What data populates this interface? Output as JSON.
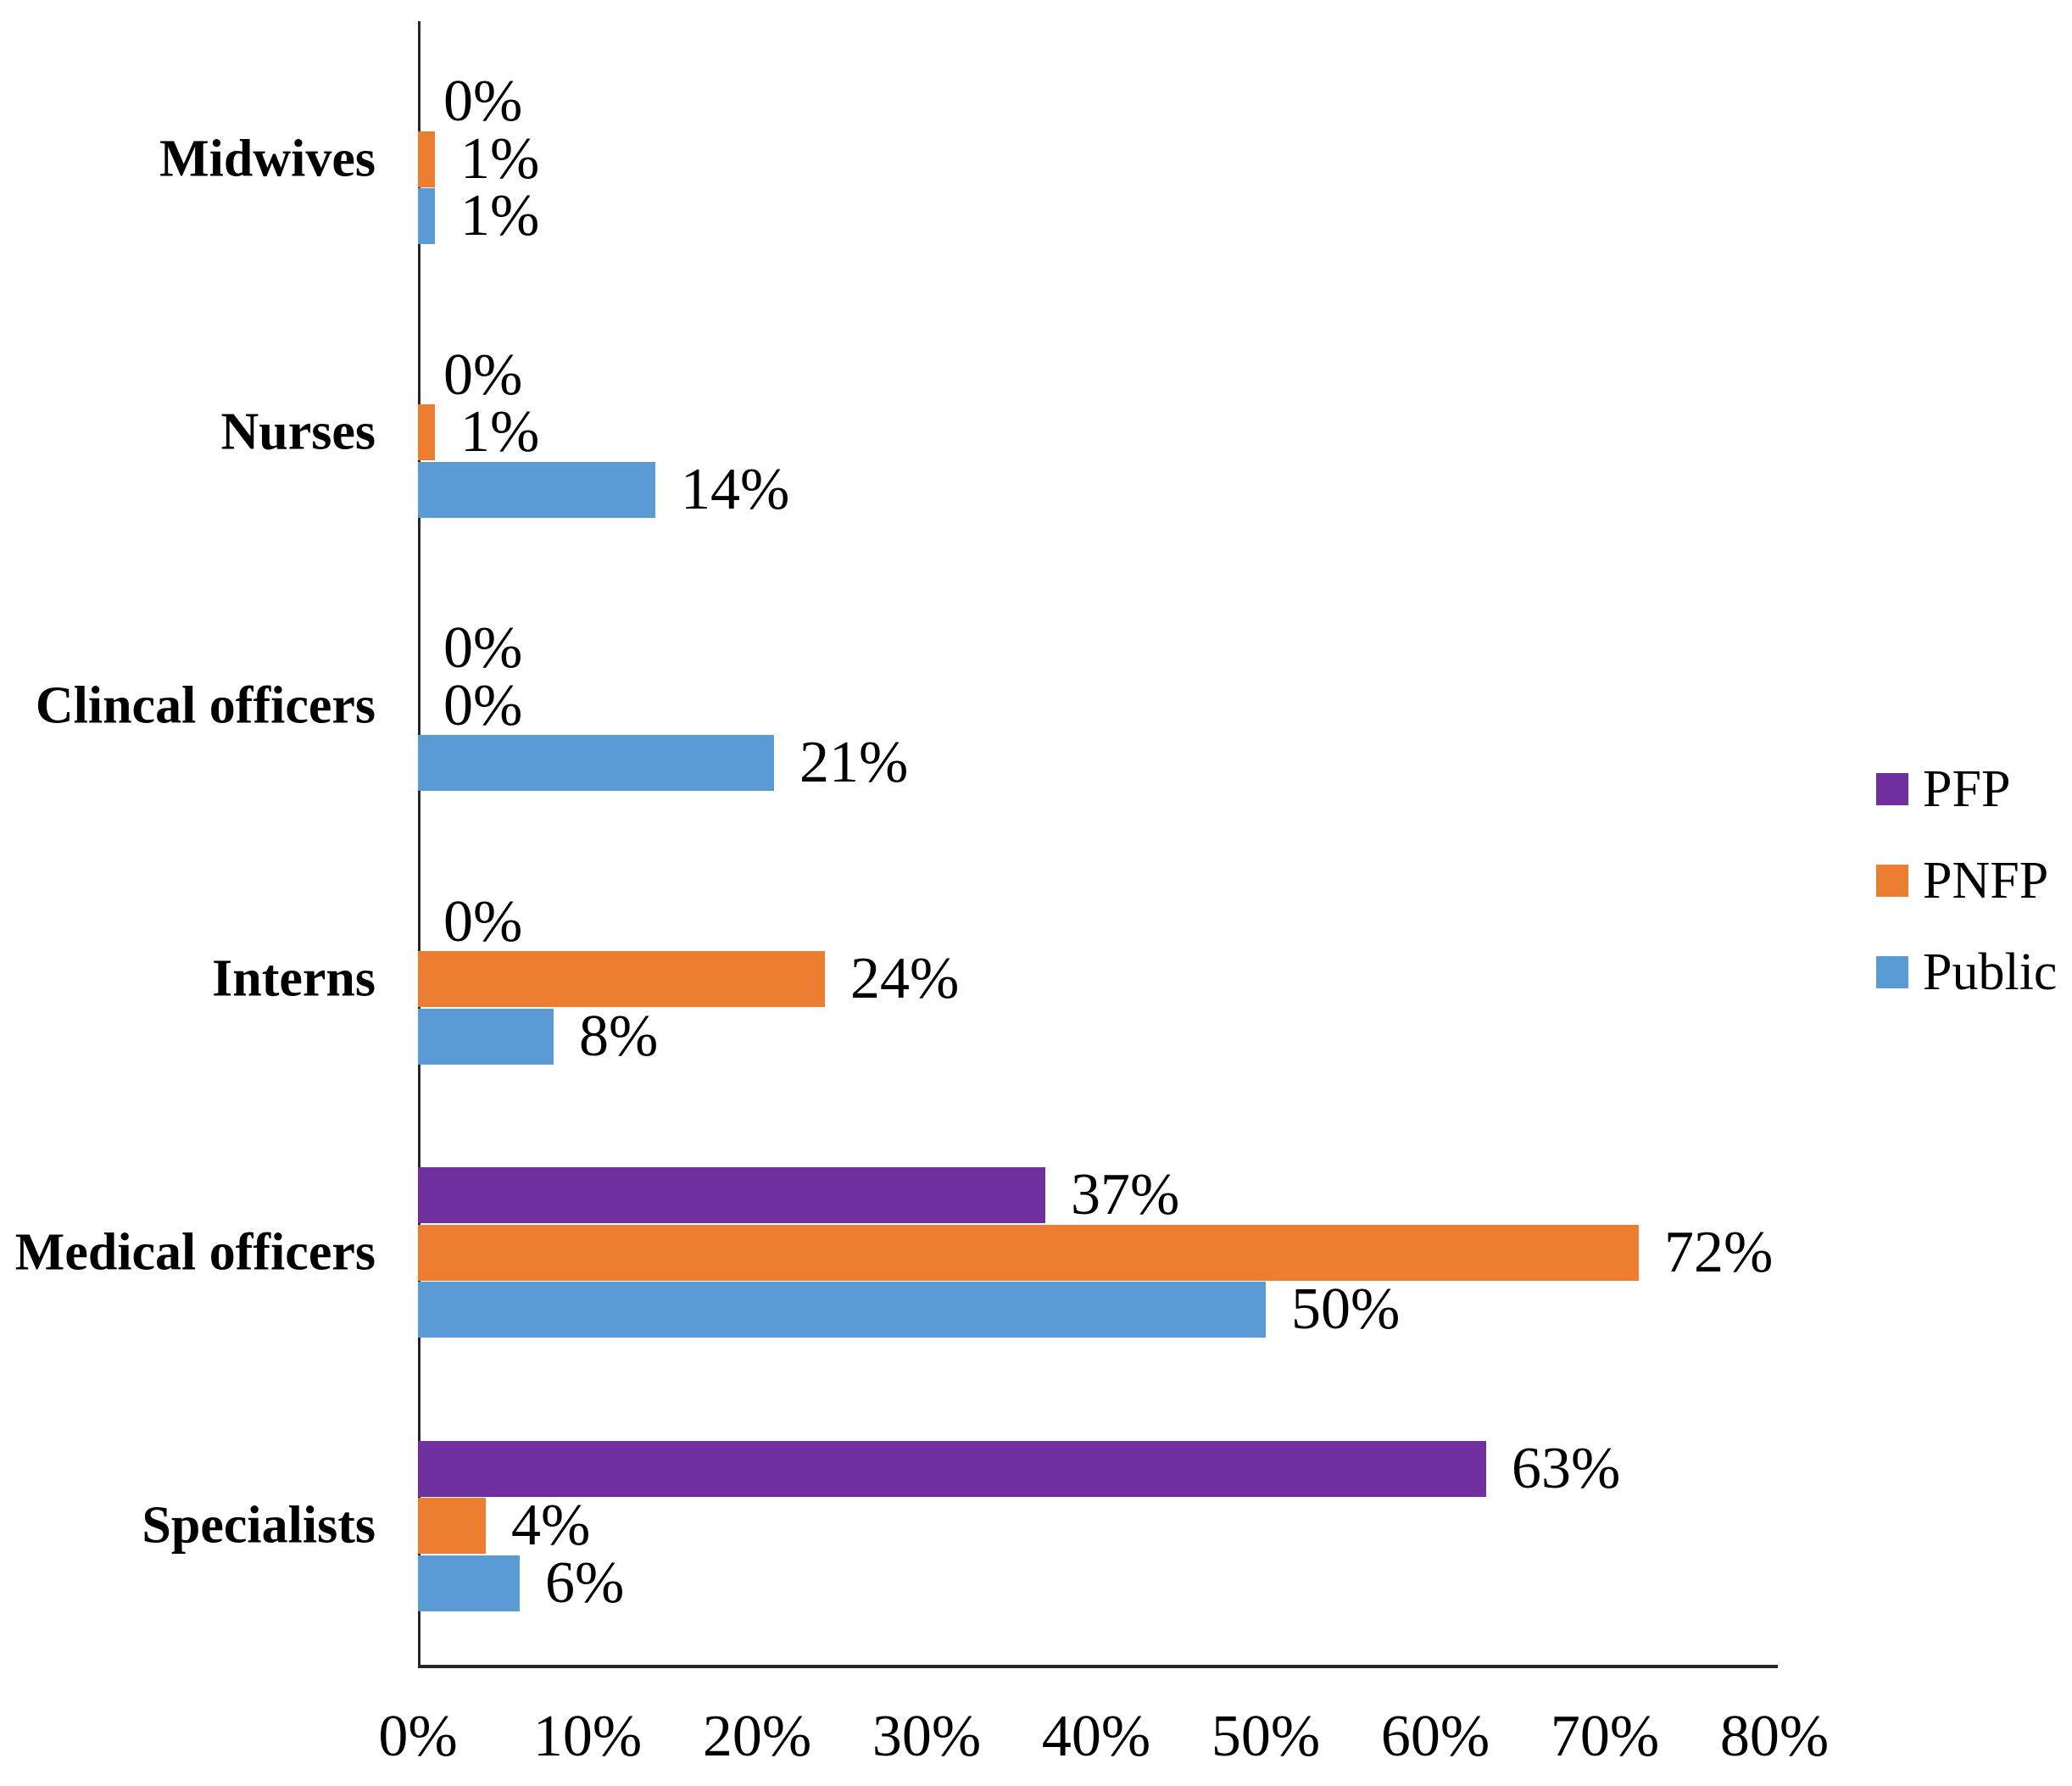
{
  "chart_data": {
    "type": "bar",
    "orientation": "horizontal",
    "categories": [
      "Midwives",
      "Nurses",
      "Clincal officers",
      "Interns",
      "Medical officers",
      "Specialists"
    ],
    "series": [
      {
        "name": "PFP",
        "color": "#7030A0",
        "values": [
          0,
          0,
          0,
          0,
          37,
          63
        ]
      },
      {
        "name": "PNFP",
        "color": "#ED7D31",
        "values": [
          1,
          1,
          0,
          24,
          72,
          4
        ]
      },
      {
        "name": "Public",
        "color": "#5B9BD5",
        "values": [
          1,
          14,
          21,
          8,
          50,
          6
        ]
      }
    ],
    "value_suffix": "%",
    "data_labels": true,
    "x_axis": {
      "min": 0,
      "max": 80,
      "ticks": [
        "0%",
        "10%",
        "20%",
        "30%",
        "40%",
        "50%",
        "60%",
        "70%",
        "80%"
      ]
    },
    "legend": {
      "position": "right",
      "entries": [
        "PFP",
        "PNFP",
        "Public"
      ]
    },
    "grid": false
  },
  "colors": {
    "axis_line": "#262626",
    "text": "#000000",
    "background": "#FFFFFF"
  }
}
